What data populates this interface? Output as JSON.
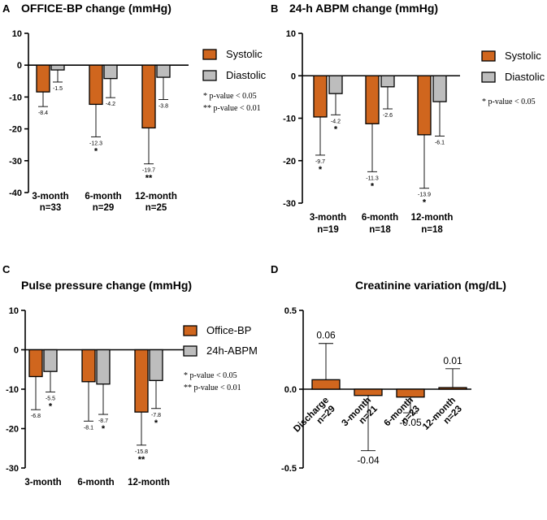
{
  "colors": {
    "orange": "#D0661E",
    "gray": "#BDBDBD",
    "stroke": "#000000"
  },
  "chart_data": [
    {
      "id": "A",
      "type": "bar",
      "panel": "A",
      "title": "OFFICE-BP change (mmHg)",
      "ylim": [
        -40,
        10
      ],
      "yticks": [
        10,
        0,
        -10,
        -20,
        -30,
        -40
      ],
      "categories": [
        [
          "3-month",
          "n=33"
        ],
        [
          "6-month",
          "n=29"
        ],
        [
          "12-month",
          "n=25"
        ]
      ],
      "series": [
        {
          "name": "Systolic",
          "color": "#D0661E",
          "values": [
            -8.4,
            -12.3,
            -19.7
          ],
          "error_lower": [
            -13.0,
            -22.5,
            -31.0
          ],
          "labels": [
            "-8.4",
            "-12.3",
            "-19.7"
          ],
          "stars": [
            "",
            "*",
            "**"
          ]
        },
        {
          "name": "Diastolic",
          "color": "#BDBDBD",
          "values": [
            -1.5,
            -4.2,
            -3.8
          ],
          "error_lower": [
            -5.3,
            -10.2,
            -10.8
          ],
          "labels": [
            "-1.5",
            "-4.2",
            "-3.8"
          ],
          "stars": [
            "",
            "",
            ""
          ]
        }
      ],
      "notes": [
        "* p-value < 0.05",
        "** p-value < 0.01"
      ],
      "legend_position": "right"
    },
    {
      "id": "B",
      "type": "bar",
      "panel": "B",
      "title": "24-h ABPM change (mmHg)",
      "ylim": [
        -30,
        10
      ],
      "yticks": [
        10,
        0,
        -10,
        -20,
        -30
      ],
      "categories": [
        [
          "3-month",
          "n=19"
        ],
        [
          "6-month",
          "n=18"
        ],
        [
          "12-month",
          "n=18"
        ]
      ],
      "series": [
        {
          "name": "Systolic",
          "color": "#D0661E",
          "values": [
            -9.7,
            -11.3,
            -13.9
          ],
          "error_lower": [
            -18.7,
            -22.6,
            -26.5
          ],
          "labels": [
            "-9.7",
            "-11.3",
            "-13.9"
          ],
          "stars": [
            "*",
            "*",
            "*"
          ]
        },
        {
          "name": "Diastolic",
          "color": "#BDBDBD",
          "values": [
            -4.2,
            -2.6,
            -6.1
          ],
          "error_lower": [
            -9.2,
            -7.8,
            -14.2
          ],
          "labels": [
            "-4.2",
            "-2.6",
            "-6.1"
          ],
          "stars": [
            "*",
            "",
            ""
          ]
        }
      ],
      "notes": [
        "* p-value < 0.05"
      ],
      "legend_position": "right"
    },
    {
      "id": "C",
      "type": "bar",
      "panel": "C",
      "title": "Pulse pressure change (mmHg)",
      "ylim": [
        -30,
        10
      ],
      "yticks": [
        10,
        0,
        -10,
        -20,
        -30
      ],
      "categories": [
        [
          "3-month"
        ],
        [
          "6-month"
        ],
        [
          "12-month"
        ]
      ],
      "series": [
        {
          "name": "Office-BP",
          "color": "#D0661E",
          "values": [
            -6.8,
            -8.1,
            -15.8
          ],
          "error_lower": [
            -15.2,
            -18.1,
            -24.2
          ],
          "labels": [
            "-6.8",
            "-8.1",
            "-15.8"
          ],
          "stars": [
            "",
            "",
            "**"
          ]
        },
        {
          "name": "24h-ABPM",
          "color": "#BDBDBD",
          "values": [
            -5.5,
            -8.7,
            -7.8
          ],
          "error_lower": [
            -10.7,
            -16.4,
            -14.9
          ],
          "labels": [
            "-5.5",
            "-8.7",
            "-7.8"
          ],
          "stars": [
            "*",
            "*",
            "*"
          ]
        }
      ],
      "notes": [
        "* p-value < 0.05",
        "** p-value < 0.01"
      ],
      "legend_position": "right"
    },
    {
      "id": "D",
      "type": "bar",
      "panel": "D",
      "title": "Creatinine variation (mg/dL)",
      "ylim": [
        -0.5,
        0.5
      ],
      "yticks": [
        0.5,
        0.0,
        -0.5
      ],
      "ytick_labels": [
        "0.5",
        "0.0",
        "-0.5"
      ],
      "categories": [
        [
          "Discharge",
          "n=29"
        ],
        [
          "3-month",
          "n=21"
        ],
        [
          "6-month",
          "n=23"
        ],
        [
          "12-month",
          "n=23"
        ]
      ],
      "series": [
        {
          "color": "#D0661E",
          "values": [
            0.06,
            -0.04,
            -0.05,
            0.01
          ],
          "error_end": [
            0.29,
            -0.39,
            -0.15,
            0.13
          ],
          "labels": [
            "0.06",
            "-0.04",
            "-0.05",
            "0.01"
          ]
        }
      ]
    }
  ]
}
